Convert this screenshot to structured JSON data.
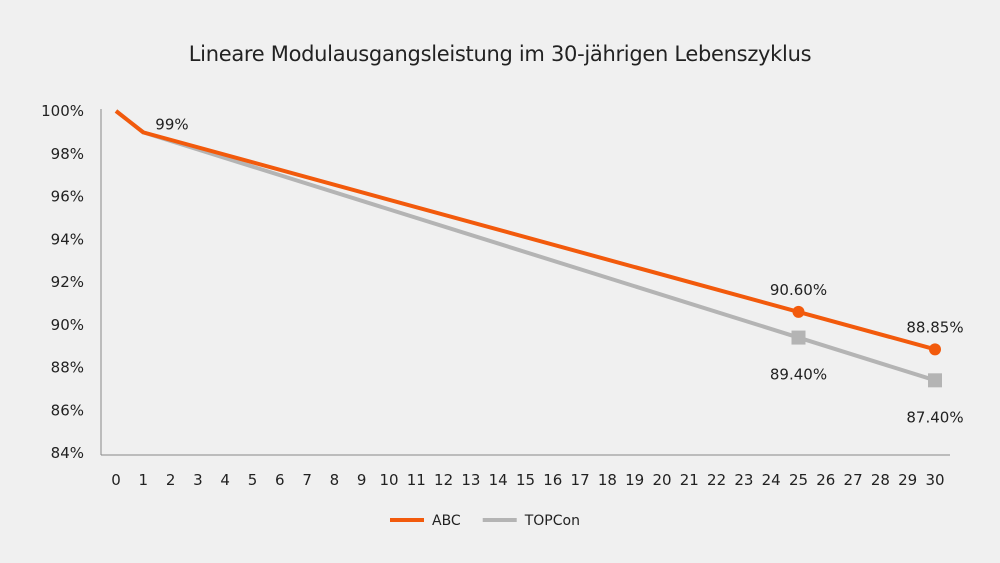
{
  "chart_data": {
    "type": "line",
    "title": "Lineare Modulausgangsleistung im 30-jährigen Lebenszyklus",
    "xlabel": "",
    "ylabel": "",
    "x_ticks": [
      "0",
      "1",
      "2",
      "3",
      "4",
      "5",
      "6",
      "7",
      "8",
      "9",
      "10",
      "11",
      "12",
      "13",
      "14",
      "15",
      "16",
      "17",
      "18",
      "19",
      "20",
      "21",
      "22",
      "23",
      "24",
      "25",
      "26",
      "27",
      "28",
      "29",
      "30"
    ],
    "y_ticks": [
      "100%",
      "98%",
      "96%",
      "94%",
      "92%",
      "90%",
      "88%",
      "86%",
      "84%"
    ],
    "xlim": [
      0,
      30
    ],
    "ylim": [
      84,
      100
    ],
    "grid": false,
    "legend_position": "bottom",
    "series": [
      {
        "name": "ABC",
        "color": "#f25a0c",
        "x": [
          0,
          1,
          25,
          30
        ],
        "y": [
          100,
          99,
          90.6,
          88.85
        ],
        "marker": "circle",
        "labels": [
          {
            "x": 1,
            "text": "99%"
          },
          {
            "x": 25,
            "text": "90.60%"
          },
          {
            "x": 30,
            "text": "88.85%"
          }
        ]
      },
      {
        "name": "TOPCon",
        "color": "#b4b4b4",
        "x": [
          0,
          1,
          25,
          30
        ],
        "y": [
          100,
          99,
          89.4,
          87.4
        ],
        "marker": "square",
        "labels": [
          {
            "x": 25,
            "text": "89.40%"
          },
          {
            "x": 30,
            "text": "87.40%"
          }
        ]
      }
    ]
  }
}
